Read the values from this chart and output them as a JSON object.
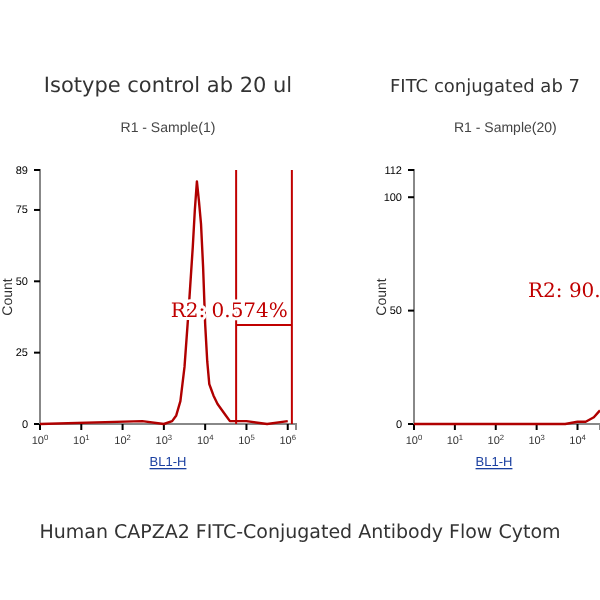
{
  "chart_data": [
    {
      "type": "line",
      "title": "Isotype control ab 20 ul",
      "subtitle": "R1 - Sample(1)",
      "xlabel": "BL1-H",
      "ylabel": "Count",
      "log": "x",
      "xlim": [
        1,
        1584893
      ],
      "xticks": [
        {
          "value": 1,
          "label": "10$^{0}$"
        },
        {
          "value": 10,
          "label": "10$^{1}$"
        },
        {
          "value": 100,
          "label": "10$^{2}$"
        },
        {
          "value": 1000,
          "label": "10$^{3}$"
        },
        {
          "value": 10000,
          "label": "10$^{4}$"
        },
        {
          "value": 100000,
          "label": "10$^{5}$"
        },
        {
          "value": 1000000,
          "label": "10$^{6}$"
        }
      ],
      "ylim": [
        0,
        89
      ],
      "yticks": [
        0,
        25,
        50,
        75,
        89
      ],
      "series": [
        {
          "color": "#b00000",
          "x": [
            1,
            300,
            1000,
            1585,
            1995,
            2512,
            3162,
            3981,
            5012,
            5623,
            6310,
            7079,
            7943,
            8913,
            10000,
            11220,
            12589,
            14125,
            15849,
            19953,
            25119,
            31623,
            39811,
            50119,
            100000,
            316228,
            1000000
          ],
          "values": [
            0,
            1,
            0,
            1,
            3,
            8,
            20,
            40,
            62,
            75,
            85,
            78,
            70,
            55,
            35,
            22,
            14,
            12,
            10,
            7,
            5,
            3,
            1,
            1,
            1,
            0,
            1
          ]
        }
      ],
      "ref_lines": [
        {
          "axis": "x",
          "value": 56234,
          "color": "#c00000"
        },
        {
          "axis": "x",
          "value": 1258925,
          "color": "#c00000"
        }
      ],
      "annotations": [
        "R2: 0.574%",
        "Human CAPZA2 FITC-Conjugated Antibody Flow Cytom"
      ]
    },
    {
      "type": "line",
      "title": "FITC conjugated ab 7",
      "subtitle": "R1 - Sample(20)",
      "xlabel": "BL1-H",
      "ylabel": "Count",
      "log": "x",
      "xlim": [
        1,
        35481
      ],
      "xticks": [
        {
          "value": 1,
          "label": "10$^{0}$"
        },
        {
          "value": 10,
          "label": "10$^{1}$"
        },
        {
          "value": 100,
          "label": "10$^{2}$"
        },
        {
          "value": 1000,
          "label": "10$^{3}$"
        },
        {
          "value": 10000,
          "label": "10$^{4}$"
        }
      ],
      "ylim": [
        0,
        112
      ],
      "yticks": [
        0,
        50,
        100,
        112
      ],
      "series": [
        {
          "color": "#b00000",
          "x": [
            1,
            5000,
            10000,
            15849,
            25119,
            31623,
            35481
          ],
          "values": [
            0,
            0,
            1,
            1,
            3,
            5,
            6
          ]
        }
      ],
      "annotations": [
        "R2: 90."
      ]
    }
  ]
}
